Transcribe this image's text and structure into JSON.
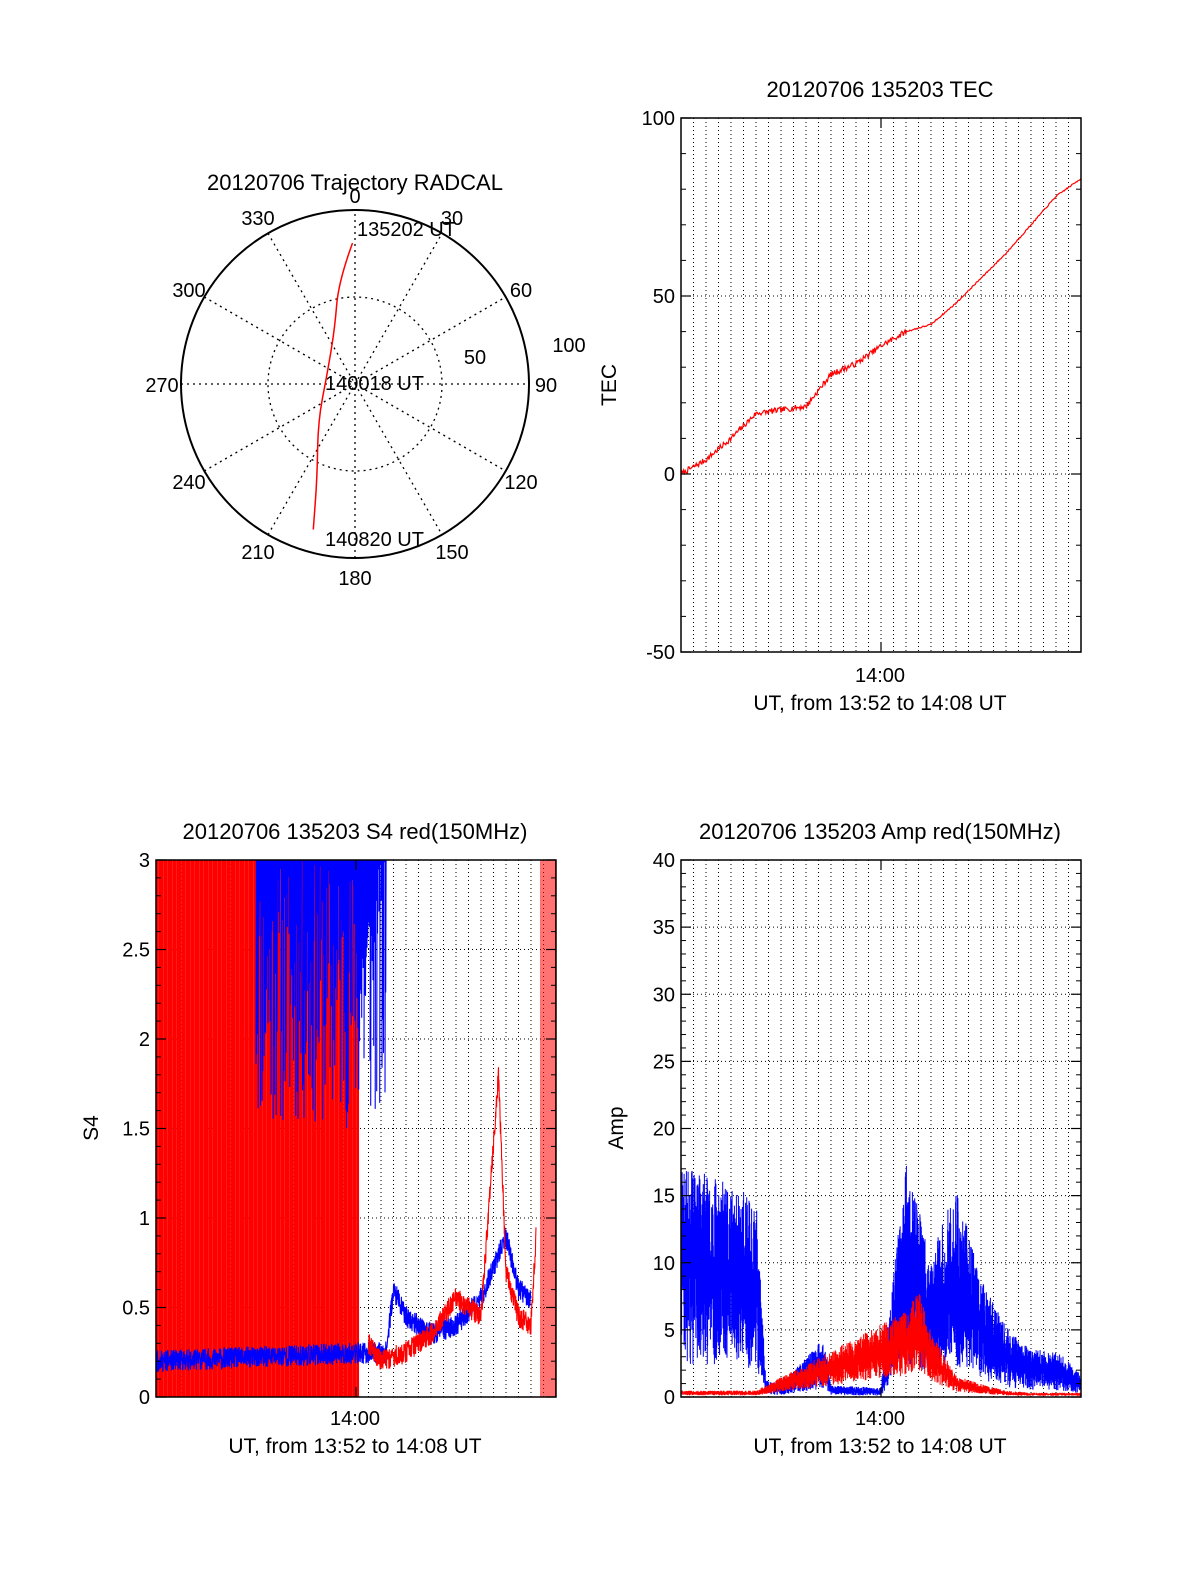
{
  "chart_data": [
    {
      "type": "polar",
      "title": "20120706 Trajectory RADCAL",
      "angle_labels": [
        "0",
        "30",
        "60",
        "90",
        "120",
        "150",
        "180",
        "210",
        "240",
        "270",
        "300",
        "330"
      ],
      "radius_labels": [
        "50",
        "100"
      ],
      "rlim": [
        0,
        100
      ],
      "grid": true,
      "series": [
        {
          "color": "#ff0000",
          "points": [
            {
              "az": 359,
              "zenith": 81
            },
            {
              "az": 351,
              "zenith": 60
            },
            {
              "az": 340,
              "zenith": 34
            },
            {
              "az": 290,
              "zenith": 17
            },
            {
              "az": 225,
              "zenith": 30
            },
            {
              "az": 202,
              "zenith": 58
            },
            {
              "az": 196,
              "zenith": 87
            }
          ]
        }
      ],
      "annotations": [
        "135202 UT",
        "140018 UT",
        "140820 UT"
      ]
    },
    {
      "type": "line",
      "title": "20120706 135203 TEC",
      "xlabel": "UT, from 13:52 to 14:08 UT",
      "ylabel": "TEC",
      "xlim": [
        "13:52",
        "14:08"
      ],
      "ylim": [
        -50,
        100
      ],
      "xticks": [
        "14:00"
      ],
      "yticks": [
        "-50",
        "0",
        "50",
        "100"
      ],
      "grid": true,
      "series": [
        {
          "color": "#ff0000",
          "x": [
            "13:52",
            "13:53",
            "13:54",
            "13:55",
            "13:56",
            "13:57",
            "13:58",
            "13:59",
            "14:00",
            "14:01",
            "14:02",
            "14:03",
            "14:04",
            "14:05",
            "14:06",
            "14:07",
            "14:08"
          ],
          "y": [
            0,
            4,
            10,
            17,
            18,
            19,
            28,
            31,
            36,
            40,
            42,
            48,
            55,
            62,
            70,
            78,
            83
          ]
        }
      ]
    },
    {
      "type": "line",
      "title": "20120706 135203 S4 red(150MHz)",
      "xlabel": "UT, from 13:52 to 14:08 UT",
      "ylabel": "S4",
      "xlim": [
        "13:52",
        "14:08"
      ],
      "ylim": [
        0,
        3
      ],
      "xticks": [
        "14:00"
      ],
      "yticks": [
        "0",
        "0.5",
        "1",
        "1.5",
        "2",
        "2.5",
        "3"
      ],
      "grid": true,
      "series": [
        {
          "color": "#ff0000",
          "x": [
            "14:00.5",
            "14:01",
            "14:02",
            "14:03",
            "14:04",
            "14:05",
            "14:05.7",
            "14:06",
            "14:06.5",
            "14:07",
            "14:07.2"
          ],
          "y": [
            0.3,
            0.2,
            0.25,
            0.35,
            0.55,
            0.45,
            1.8,
            0.7,
            0.45,
            0.4,
            0.9
          ]
        },
        {
          "color": "#0000ff",
          "x": [
            "13:52",
            "13:55.3",
            "14:01.2",
            "14:01.5",
            "14:02",
            "14:03",
            "14:04",
            "14:05",
            "14:06",
            "14:06.5",
            "14:07"
          ],
          "y": [
            0.2,
            0.22,
            0.25,
            0.6,
            0.45,
            0.35,
            0.4,
            0.55,
            0.9,
            0.6,
            0.55
          ]
        }
      ]
    },
    {
      "type": "line",
      "title": "20120706 135203 Amp red(150MHz)",
      "xlabel": "UT, from 13:52 to 14:08 UT",
      "ylabel": "Amp",
      "xlim": [
        "13:52",
        "14:08"
      ],
      "ylim": [
        0,
        40
      ],
      "xticks": [
        "14:00"
      ],
      "yticks": [
        "0",
        "5",
        "10",
        "15",
        "20",
        "25",
        "30",
        "35",
        "40"
      ],
      "grid": true,
      "series": [
        {
          "color": "#0000ff",
          "x": [
            "13:52",
            "13:53",
            "13:54",
            "13:55",
            "13:55.4",
            "13:56",
            "13:57.7",
            "13:58",
            "14:00",
            "14:01",
            "14:02",
            "14:03",
            "14:04",
            "14:05",
            "14:06",
            "14:07",
            "14:08"
          ],
          "y": [
            10,
            9.5,
            9,
            8.5,
            0.7,
            0.6,
            2.5,
            0.5,
            0.4,
            10,
            6,
            9,
            5,
            3,
            2,
            2,
            1
          ]
        },
        {
          "color": "#ff0000",
          "x": [
            "13:52",
            "13:55",
            "14:01",
            "14:01.5",
            "14:02",
            "14:03",
            "14:04",
            "14:05",
            "14:06",
            "14:07"
          ],
          "y": [
            0.3,
            0.3,
            4,
            5,
            3,
            1,
            0.6,
            0.3,
            0.2,
            0.2
          ]
        }
      ]
    }
  ]
}
